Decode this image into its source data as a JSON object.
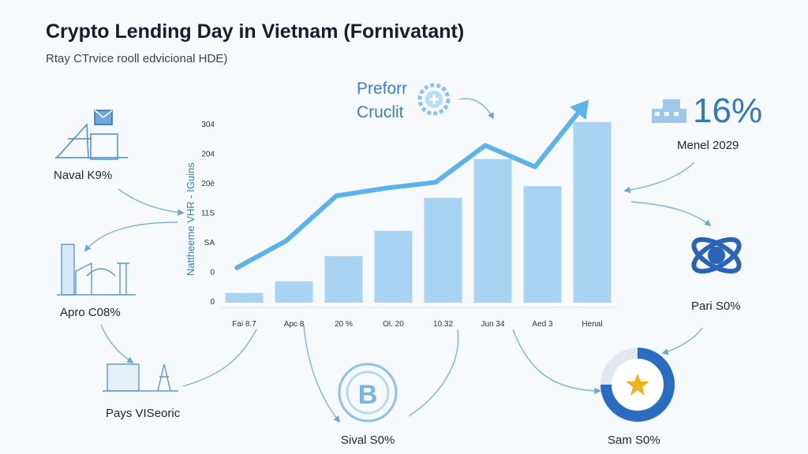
{
  "title": "Crypto Lending Day in Vietnam (Fornivatant)",
  "subtitle": "Rtay CTrvice rooll edvicional HDE)",
  "callout": {
    "line1": "Preforr",
    "line2": "Cruclit"
  },
  "stat": {
    "value": "16%",
    "label": "Menel 2029"
  },
  "side_labels": {
    "naval": "Naval K9%",
    "apro": "Apro C08%",
    "pays": "Pays VISeoric",
    "sival": "Sival S0%",
    "sam": "Sam S0%",
    "pari": "Pari S0%"
  },
  "colors": {
    "bar": "#a9d3f3",
    "line": "#5cb3ea",
    "accent": "#2e78c4",
    "star": "#f2b01e"
  },
  "chart_data": {
    "type": "bar",
    "ylabel": "Nattheeme VHR - IGuins",
    "y_ticks": [
      "0",
      "0",
      "SA",
      "11S",
      "20è",
      "204",
      "304"
    ],
    "categories": [
      "Fai 8.7",
      "Apc 8",
      "20 %",
      "Ol. 20",
      "10.32",
      "Jun 34",
      "Aed 3",
      "Henal"
    ],
    "values": [
      5,
      11,
      24,
      37,
      54,
      74,
      60,
      93
    ],
    "series": [
      {
        "type": "line",
        "values": [
          18,
          32,
          55,
          59,
          62,
          81,
          70,
          102
        ]
      }
    ],
    "ylim": [
      0,
      108
    ],
    "grid": false
  }
}
